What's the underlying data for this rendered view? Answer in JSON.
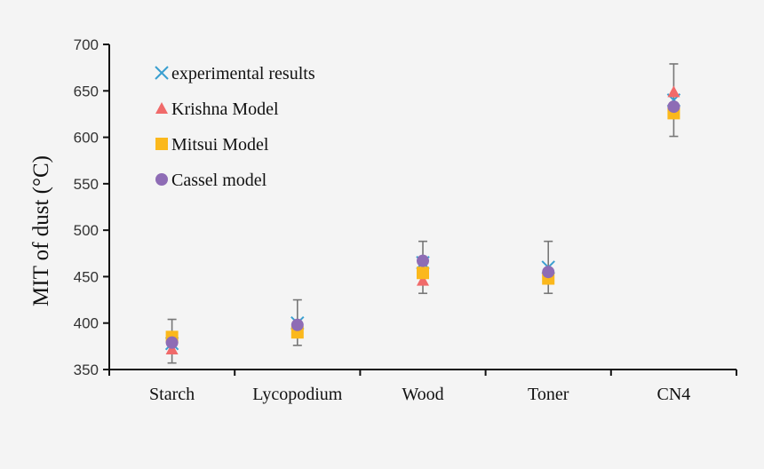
{
  "chart_data": {
    "type": "scatter",
    "title": "",
    "xlabel": "",
    "ylabel": "MIT of dust (°C)",
    "categories": [
      "Starch",
      "Lycopodium",
      "Wood",
      "Toner",
      "CN4"
    ],
    "ylim": [
      350,
      700
    ],
    "yticks": [
      350,
      400,
      450,
      500,
      550,
      600,
      650,
      700
    ],
    "grid": false,
    "legend_position": "top-left",
    "series": [
      {
        "name": "experimental results",
        "marker": "x",
        "color": "#3a9fd0",
        "values": [
          378,
          400,
          465,
          460,
          640
        ],
        "error_low": [
          357,
          376,
          432,
          432,
          601
        ],
        "error_high": [
          404,
          425,
          488,
          488,
          679
        ]
      },
      {
        "name": "Krishna  Model",
        "marker": "triangle",
        "color": "#f06a6a",
        "values": [
          372,
          395,
          446,
          451,
          649
        ]
      },
      {
        "name": "Mitsui Model",
        "marker": "square",
        "color": "#fbb81c",
        "values": [
          385,
          390,
          454,
          448,
          626
        ]
      },
      {
        "name": "Cassel model",
        "marker": "circle",
        "color": "#8e6cb5",
        "values": [
          379,
          398,
          467,
          455,
          633
        ]
      }
    ]
  }
}
